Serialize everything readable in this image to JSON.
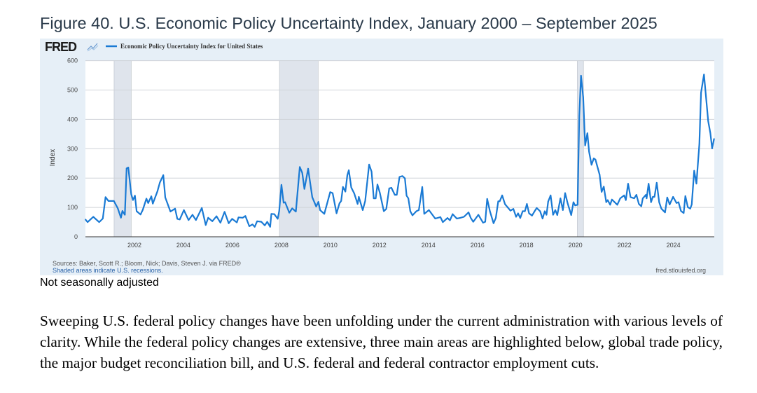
{
  "figure_title": "Figure 40. U.S. Economic Policy Uncertainty Index, January 2000 – September 2025",
  "chart_data": {
    "type": "line",
    "logo_text": "FRED",
    "title": "Economic Policy Uncertainty Index for United States",
    "ylabel": "Index",
    "xlabel": "",
    "ylim": [
      0,
      600
    ],
    "xlim": [
      2000.0,
      2025.67
    ],
    "y_ticks": [
      "0",
      "100",
      "200",
      "300",
      "400",
      "500",
      "600"
    ],
    "y_tick_values": [
      0,
      100,
      200,
      300,
      400,
      500,
      600
    ],
    "x_ticks": [
      "2002",
      "2004",
      "2006",
      "2008",
      "2010",
      "2012",
      "2014",
      "2016",
      "2018",
      "2020",
      "2022",
      "2024"
    ],
    "grid": true,
    "legend": "top-left",
    "recessions": [
      [
        2001.17,
        2001.87
      ],
      [
        2007.92,
        2009.5
      ],
      [
        2020.08,
        2020.33
      ]
    ],
    "series": [
      {
        "name": "Economic Policy Uncertainty Index for United States",
        "color": "#1a7ad4",
        "points": [
          [
            2000.0,
            59
          ],
          [
            2000.09,
            50
          ],
          [
            2000.32,
            68
          ],
          [
            2000.56,
            50
          ],
          [
            2000.71,
            62
          ],
          [
            2000.82,
            135
          ],
          [
            2000.94,
            122
          ],
          [
            2001.16,
            122
          ],
          [
            2001.32,
            97
          ],
          [
            2001.45,
            65
          ],
          [
            2001.51,
            88
          ],
          [
            2001.61,
            75
          ],
          [
            2001.68,
            233
          ],
          [
            2001.75,
            236
          ],
          [
            2001.87,
            145
          ],
          [
            2001.94,
            125
          ],
          [
            2002.02,
            140
          ],
          [
            2002.09,
            87
          ],
          [
            2002.25,
            76
          ],
          [
            2002.34,
            92
          ],
          [
            2002.49,
            130
          ],
          [
            2002.56,
            115
          ],
          [
            2002.69,
            138
          ],
          [
            2002.75,
            113
          ],
          [
            2002.94,
            155
          ],
          [
            2003.04,
            185
          ],
          [
            2003.18,
            210
          ],
          [
            2003.26,
            134
          ],
          [
            2003.47,
            86
          ],
          [
            2003.66,
            96
          ],
          [
            2003.75,
            61
          ],
          [
            2003.85,
            59
          ],
          [
            2004.02,
            91
          ],
          [
            2004.21,
            57
          ],
          [
            2004.37,
            75
          ],
          [
            2004.51,
            57
          ],
          [
            2004.75,
            98
          ],
          [
            2004.91,
            40
          ],
          [
            2005.01,
            65
          ],
          [
            2005.18,
            53
          ],
          [
            2005.35,
            70
          ],
          [
            2005.51,
            48
          ],
          [
            2005.68,
            85
          ],
          [
            2005.85,
            46
          ],
          [
            2005.99,
            61
          ],
          [
            2006.18,
            49
          ],
          [
            2006.25,
            66
          ],
          [
            2006.42,
            65
          ],
          [
            2006.53,
            71
          ],
          [
            2006.69,
            36
          ],
          [
            2006.82,
            42
          ],
          [
            2006.91,
            34
          ],
          [
            2007.01,
            53
          ],
          [
            2007.18,
            51
          ],
          [
            2007.32,
            39
          ],
          [
            2007.42,
            51
          ],
          [
            2007.54,
            34
          ],
          [
            2007.59,
            78
          ],
          [
            2007.71,
            77
          ],
          [
            2007.85,
            61
          ],
          [
            2007.91,
            88
          ],
          [
            2008.0,
            177
          ],
          [
            2008.09,
            116
          ],
          [
            2008.15,
            118
          ],
          [
            2008.32,
            82
          ],
          [
            2008.44,
            97
          ],
          [
            2008.59,
            86
          ],
          [
            2008.75,
            238
          ],
          [
            2008.85,
            218
          ],
          [
            2008.94,
            163
          ],
          [
            2009.09,
            232
          ],
          [
            2009.26,
            135
          ],
          [
            2009.42,
            103
          ],
          [
            2009.51,
            119
          ],
          [
            2009.58,
            91
          ],
          [
            2009.75,
            78
          ],
          [
            2009.99,
            152
          ],
          [
            2010.09,
            149
          ],
          [
            2010.25,
            80
          ],
          [
            2010.37,
            114
          ],
          [
            2010.44,
            122
          ],
          [
            2010.51,
            170
          ],
          [
            2010.61,
            154
          ],
          [
            2010.69,
            210
          ],
          [
            2010.75,
            227
          ],
          [
            2010.85,
            168
          ],
          [
            2010.97,
            148
          ],
          [
            2011.11,
            112
          ],
          [
            2011.16,
            136
          ],
          [
            2011.32,
            91
          ],
          [
            2011.42,
            122
          ],
          [
            2011.58,
            246
          ],
          [
            2011.68,
            222
          ],
          [
            2011.77,
            131
          ],
          [
            2011.85,
            131
          ],
          [
            2011.92,
            178
          ],
          [
            2012.02,
            149
          ],
          [
            2012.18,
            87
          ],
          [
            2012.28,
            95
          ],
          [
            2012.4,
            165
          ],
          [
            2012.49,
            167
          ],
          [
            2012.63,
            143
          ],
          [
            2012.71,
            143
          ],
          [
            2012.82,
            204
          ],
          [
            2012.94,
            207
          ],
          [
            2013.04,
            199
          ],
          [
            2013.11,
            140
          ],
          [
            2013.18,
            131
          ],
          [
            2013.26,
            87
          ],
          [
            2013.35,
            73
          ],
          [
            2013.51,
            87
          ],
          [
            2013.61,
            91
          ],
          [
            2013.75,
            170
          ],
          [
            2013.83,
            78
          ],
          [
            2014.02,
            91
          ],
          [
            2014.28,
            62
          ],
          [
            2014.49,
            67
          ],
          [
            2014.59,
            50
          ],
          [
            2014.78,
            64
          ],
          [
            2014.88,
            56
          ],
          [
            2014.99,
            77
          ],
          [
            2015.16,
            62
          ],
          [
            2015.28,
            64
          ],
          [
            2015.45,
            68
          ],
          [
            2015.64,
            83
          ],
          [
            2015.73,
            64
          ],
          [
            2015.83,
            51
          ],
          [
            2016.04,
            75
          ],
          [
            2016.23,
            48
          ],
          [
            2016.32,
            51
          ],
          [
            2016.4,
            129
          ],
          [
            2016.51,
            87
          ],
          [
            2016.66,
            46
          ],
          [
            2016.75,
            64
          ],
          [
            2016.85,
            121
          ],
          [
            2016.91,
            121
          ],
          [
            2017.01,
            141
          ],
          [
            2017.13,
            111
          ],
          [
            2017.35,
            89
          ],
          [
            2017.47,
            95
          ],
          [
            2017.58,
            68
          ],
          [
            2017.66,
            80
          ],
          [
            2017.75,
            64
          ],
          [
            2017.85,
            87
          ],
          [
            2017.94,
            87
          ],
          [
            2018.02,
            112
          ],
          [
            2018.11,
            80
          ],
          [
            2018.23,
            72
          ],
          [
            2018.32,
            85
          ],
          [
            2018.42,
            98
          ],
          [
            2018.56,
            87
          ],
          [
            2018.66,
            62
          ],
          [
            2018.75,
            87
          ],
          [
            2018.82,
            75
          ],
          [
            2018.89,
            120
          ],
          [
            2018.99,
            141
          ],
          [
            2019.09,
            75
          ],
          [
            2019.18,
            91
          ],
          [
            2019.26,
            74
          ],
          [
            2019.39,
            131
          ],
          [
            2019.49,
            91
          ],
          [
            2019.58,
            149
          ],
          [
            2019.68,
            115
          ],
          [
            2019.83,
            74
          ],
          [
            2019.92,
            118
          ],
          [
            2019.99,
            107
          ],
          [
            2020.09,
            109
          ],
          [
            2020.16,
            412
          ],
          [
            2020.23,
            549
          ],
          [
            2020.32,
            476
          ],
          [
            2020.4,
            311
          ],
          [
            2020.49,
            353
          ],
          [
            2020.56,
            290
          ],
          [
            2020.66,
            245
          ],
          [
            2020.75,
            267
          ],
          [
            2020.82,
            263
          ],
          [
            2020.99,
            211
          ],
          [
            2021.07,
            153
          ],
          [
            2021.16,
            171
          ],
          [
            2021.26,
            118
          ],
          [
            2021.32,
            125
          ],
          [
            2021.42,
            109
          ],
          [
            2021.49,
            127
          ],
          [
            2021.71,
            109
          ],
          [
            2021.83,
            131
          ],
          [
            2021.99,
            141
          ],
          [
            2022.06,
            125
          ],
          [
            2022.15,
            181
          ],
          [
            2022.25,
            135
          ],
          [
            2022.4,
            131
          ],
          [
            2022.49,
            143
          ],
          [
            2022.59,
            112
          ],
          [
            2022.69,
            104
          ],
          [
            2022.75,
            131
          ],
          [
            2022.88,
            143
          ],
          [
            2022.91,
            131
          ],
          [
            2022.99,
            181
          ],
          [
            2023.09,
            118
          ],
          [
            2023.16,
            136
          ],
          [
            2023.23,
            136
          ],
          [
            2023.32,
            184
          ],
          [
            2023.42,
            118
          ],
          [
            2023.51,
            96
          ],
          [
            2023.66,
            83
          ],
          [
            2023.75,
            134
          ],
          [
            2023.85,
            110
          ],
          [
            2023.99,
            136
          ],
          [
            2024.13,
            115
          ],
          [
            2024.21,
            118
          ],
          [
            2024.31,
            88
          ],
          [
            2024.42,
            81
          ],
          [
            2024.49,
            139
          ],
          [
            2024.59,
            101
          ],
          [
            2024.69,
            96
          ],
          [
            2024.75,
            110
          ],
          [
            2024.85,
            225
          ],
          [
            2024.94,
            181
          ],
          [
            2025.06,
            316
          ],
          [
            2025.13,
            491
          ],
          [
            2025.25,
            553
          ],
          [
            2025.42,
            394
          ],
          [
            2025.51,
            353
          ],
          [
            2025.58,
            301
          ],
          [
            2025.66,
            334
          ]
        ]
      }
    ],
    "source_note": "Sources: Baker, Scott R.; Bloom, Nick; Davis, Steven J. via FRED®",
    "recession_note": "Shaded areas indicate U.S. recessions.",
    "site": "fred.stlouisfed.org",
    "colors": {
      "panel_bg": "#e6eff7",
      "recession": "#dfe4ec",
      "grid": "#cfd3d8",
      "note_blue": "#2a62a8"
    }
  },
  "note": "Not seasonally adjusted",
  "paragraph": "Sweeping U.S. federal policy changes have been unfolding under the current administration with various levels of clarity.  While the federal policy changes are extensive, three main areas are highlighted below, global trade policy, the major budget reconciliation bill, and U.S. federal and federal contractor employment cuts."
}
